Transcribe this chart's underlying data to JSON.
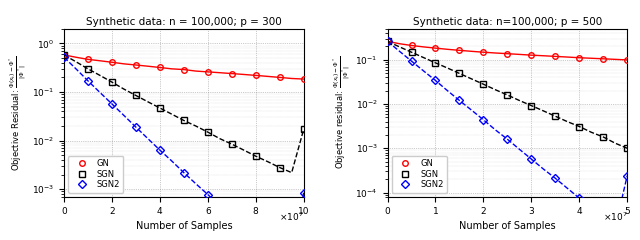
{
  "left": {
    "title": "Synthetic data: n = 100,000; p = 300",
    "xlabel": "Number of Samples",
    "ylabel": "Objective Residual: $\\frac{\\Phi(x_t)-\\Phi^*}{|\\Phi^*|}$",
    "xlim": [
      0,
      100000000.0
    ],
    "ylim": [
      0.0007,
      2.0
    ],
    "yticks": [
      0.001,
      0.01,
      0.1,
      1.0
    ],
    "xticks": [
      0,
      20000000.0,
      40000000.0,
      60000000.0,
      80000000.0,
      100000000.0
    ],
    "xscale_factor": 10000000.0,
    "GN": {
      "x": [
        0,
        5000000.0,
        10000000.0,
        15000000.0,
        20000000.0,
        25000000.0,
        30000000.0,
        35000000.0,
        40000000.0,
        45000000.0,
        50000000.0,
        55000000.0,
        60000000.0,
        65000000.0,
        70000000.0,
        75000000.0,
        80000000.0,
        85000000.0,
        90000000.0,
        95000000.0,
        100000000.0
      ],
      "y": [
        0.58,
        0.52,
        0.47,
        0.44,
        0.41,
        0.38,
        0.36,
        0.34,
        0.32,
        0.3,
        0.29,
        0.27,
        0.26,
        0.25,
        0.24,
        0.23,
        0.22,
        0.21,
        0.2,
        0.19,
        0.185
      ],
      "color": "red",
      "linestyle": "-",
      "marker": "o",
      "label": "GN"
    },
    "SGN": {
      "x": [
        0,
        5000000.0,
        10000000.0,
        15000000.0,
        20000000.0,
        25000000.0,
        30000000.0,
        35000000.0,
        40000000.0,
        45000000.0,
        50000000.0,
        55000000.0,
        60000000.0,
        65000000.0,
        70000000.0,
        75000000.0,
        80000000.0,
        85000000.0,
        90000000.0,
        95000000.0,
        100000000.0
      ],
      "y": [
        0.58,
        0.42,
        0.3,
        0.22,
        0.16,
        0.115,
        0.085,
        0.063,
        0.047,
        0.035,
        0.026,
        0.02,
        0.015,
        0.011,
        0.0085,
        0.0064,
        0.0048,
        0.0037,
        0.0028,
        0.0022,
        0.017
      ],
      "color": "black",
      "linestyle": "--",
      "marker": "s",
      "label": "SGN"
    },
    "SGN2": {
      "x": [
        0,
        5000000.0,
        10000000.0,
        15000000.0,
        20000000.0,
        25000000.0,
        30000000.0,
        35000000.0,
        40000000.0,
        45000000.0,
        50000000.0,
        55000000.0,
        60000000.0,
        65000000.0,
        70000000.0,
        75000000.0,
        80000000.0,
        85000000.0,
        90000000.0,
        95000000.0,
        100000000.0
      ],
      "y": [
        0.52,
        0.3,
        0.17,
        0.098,
        0.057,
        0.033,
        0.019,
        0.011,
        0.0064,
        0.0038,
        0.0022,
        0.0013,
        0.00078,
        0.00046,
        0.00028,
        0.00017,
        0.0001,
        6e-05,
        3.6e-05,
        2.2e-05,
        0.00085
      ],
      "color": "blue",
      "linestyle": "--",
      "marker": "D",
      "label": "SGN2"
    }
  },
  "right": {
    "title": "Synthetic data: n=100,000; p = 500",
    "xlabel": "Number of Samples",
    "ylabel": "Objective residual: $\\frac{\\Phi(x_t)-\\Phi^*}{|\\Phi^*|}$",
    "xlim": [
      0,
      50000000.0
    ],
    "ylim": [
      8e-05,
      0.5
    ],
    "yticks": [
      0.0001,
      0.001,
      0.01,
      0.1
    ],
    "xticks": [
      0,
      10000000.0,
      20000000.0,
      30000000.0,
      40000000.0,
      50000000.0
    ],
    "xscale_factor": 10000000.0,
    "GN": {
      "x": [
        0,
        2500000.0,
        5000000.0,
        7500000.0,
        10000000.0,
        12500000.0,
        15000000.0,
        17500000.0,
        20000000.0,
        22500000.0,
        25000000.0,
        27500000.0,
        30000000.0,
        32500000.0,
        35000000.0,
        37500000.0,
        40000000.0,
        42500000.0,
        45000000.0,
        47500000.0,
        50000000.0
      ],
      "y": [
        0.26,
        0.23,
        0.21,
        0.195,
        0.183,
        0.172,
        0.163,
        0.155,
        0.148,
        0.142,
        0.137,
        0.132,
        0.127,
        0.123,
        0.119,
        0.115,
        0.111,
        0.108,
        0.105,
        0.102,
        0.099
      ],
      "color": "red",
      "linestyle": "-",
      "marker": "o",
      "label": "GN"
    },
    "SGN": {
      "x": [
        0,
        2500000.0,
        5000000.0,
        7500000.0,
        10000000.0,
        12500000.0,
        15000000.0,
        17500000.0,
        20000000.0,
        22500000.0,
        25000000.0,
        27500000.0,
        30000000.0,
        32500000.0,
        35000000.0,
        37500000.0,
        40000000.0,
        42500000.0,
        45000000.0,
        47500000.0,
        50000000.0
      ],
      "y": [
        0.26,
        0.195,
        0.148,
        0.112,
        0.085,
        0.065,
        0.049,
        0.037,
        0.028,
        0.021,
        0.016,
        0.012,
        0.0092,
        0.007,
        0.0053,
        0.004,
        0.0031,
        0.0023,
        0.0018,
        0.0013,
        0.001
      ],
      "color": "black",
      "linestyle": "--",
      "marker": "s",
      "label": "SGN"
    },
    "SGN2": {
      "x": [
        0,
        2500000.0,
        5000000.0,
        7500000.0,
        10000000.0,
        12500000.0,
        15000000.0,
        17500000.0,
        20000000.0,
        22500000.0,
        25000000.0,
        27500000.0,
        30000000.0,
        32500000.0,
        35000000.0,
        37500000.0,
        40000000.0,
        42500000.0,
        45000000.0,
        47500000.0,
        50000000.0
      ],
      "y": [
        0.26,
        0.155,
        0.093,
        0.056,
        0.034,
        0.02,
        0.012,
        0.0073,
        0.0044,
        0.0026,
        0.0016,
        0.00095,
        0.00057,
        0.00034,
        0.00021,
        0.000125,
        7.5e-05,
        4.5e-05,
        2.7e-05,
        1.6e-05,
        0.00024
      ],
      "color": "blue",
      "linestyle": "--",
      "marker": "D",
      "label": "SGN2"
    }
  }
}
